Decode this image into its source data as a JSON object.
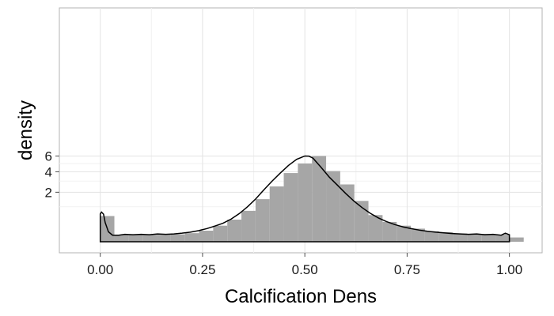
{
  "chart_data": {
    "type": "bar",
    "xlabel": "Calcification Dens",
    "ylabel": "density",
    "y_scale": "sqrt",
    "xlim": [
      -0.1,
      1.08
    ],
    "ylim": [
      0,
      6.4
    ],
    "xticks": [
      0.0,
      0.25,
      0.5,
      0.75,
      1.0
    ],
    "xtick_labels": [
      "0.00",
      "0.25",
      "0.50",
      "0.75",
      "1.00"
    ],
    "yticks": [
      2,
      4,
      6
    ],
    "ytick_labels": [
      "2",
      "4",
      "6"
    ],
    "grid": true,
    "histogram": {
      "bin_width": 0.0345,
      "bin_starts": [
        0.0,
        0.0345,
        0.069,
        0.1035,
        0.138,
        0.1725,
        0.207,
        0.2415,
        0.276,
        0.3105,
        0.345,
        0.3795,
        0.414,
        0.4485,
        0.483,
        0.5175,
        0.552,
        0.5865,
        0.621,
        0.6555,
        0.69,
        0.7245,
        0.759,
        0.7935,
        0.828,
        0.8625,
        0.897,
        0.9315,
        0.966,
        1.0005
      ],
      "values": [
        0.54,
        0.04,
        0.04,
        0.04,
        0.04,
        0.045,
        0.06,
        0.1,
        0.21,
        0.4,
        0.78,
        1.48,
        2.5,
        3.85,
        5.0,
        6.0,
        4.08,
        2.68,
        1.36,
        0.58,
        0.32,
        0.21,
        0.14,
        0.09,
        0.075,
        0.055,
        0.05,
        0.05,
        0.04,
        0.015
      ],
      "color": "#a6a6a6"
    },
    "density_curve": {
      "color": "#000000",
      "x": [
        0.0,
        0.003,
        0.008,
        0.012,
        0.02,
        0.03,
        0.045,
        0.06,
        0.08,
        0.1,
        0.12,
        0.14,
        0.16,
        0.18,
        0.2,
        0.22,
        0.24,
        0.26,
        0.28,
        0.3,
        0.32,
        0.34,
        0.36,
        0.38,
        0.4,
        0.42,
        0.44,
        0.46,
        0.48,
        0.5,
        0.51,
        0.52,
        0.54,
        0.56,
        0.58,
        0.6,
        0.62,
        0.64,
        0.66,
        0.68,
        0.7,
        0.72,
        0.74,
        0.76,
        0.78,
        0.8,
        0.82,
        0.84,
        0.86,
        0.88,
        0.9,
        0.92,
        0.94,
        0.96,
        0.98,
        0.99,
        1.0
      ],
      "y": [
        0.63,
        0.72,
        0.62,
        0.3,
        0.08,
        0.035,
        0.035,
        0.045,
        0.04,
        0.045,
        0.04,
        0.05,
        0.045,
        0.05,
        0.06,
        0.075,
        0.1,
        0.14,
        0.2,
        0.28,
        0.42,
        0.65,
        1.0,
        1.5,
        2.2,
        3.0,
        3.85,
        4.75,
        5.55,
        6.0,
        5.98,
        5.7,
        4.5,
        3.4,
        2.6,
        1.9,
        1.35,
        0.95,
        0.66,
        0.46,
        0.33,
        0.24,
        0.18,
        0.14,
        0.11,
        0.09,
        0.075,
        0.065,
        0.055,
        0.05,
        0.045,
        0.05,
        0.04,
        0.045,
        0.035,
        0.06,
        0.04
      ]
    }
  }
}
